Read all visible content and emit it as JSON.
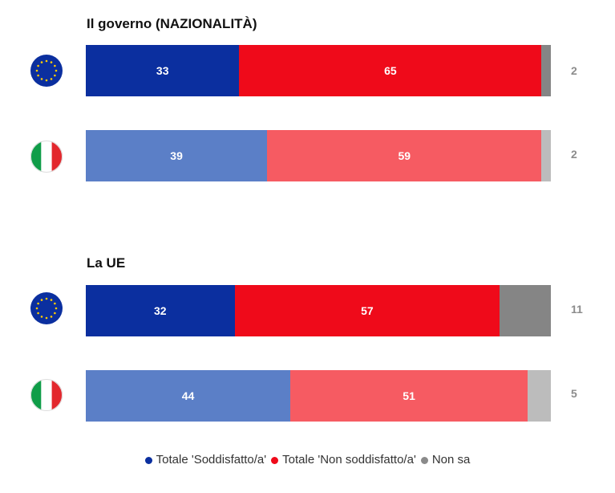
{
  "chart_data": [
    {
      "type": "bar",
      "orientation": "horizontal",
      "stacked": "100%",
      "title": "Il governo (NAZIONALITÀ)",
      "categories": [
        "EU",
        "IT"
      ],
      "series": [
        {
          "name": "Totale 'Soddisfatto/a'",
          "values": [
            33,
            39
          ]
        },
        {
          "name": "Totale 'Non soddisfatto/a'",
          "values": [
            65,
            59
          ]
        },
        {
          "name": "Non sa",
          "values": [
            2,
            2
          ]
        }
      ]
    },
    {
      "type": "bar",
      "orientation": "horizontal",
      "stacked": "100%",
      "title": "La UE",
      "categories": [
        "EU",
        "IT"
      ],
      "series": [
        {
          "name": "Totale 'Soddisfatto/a'",
          "values": [
            32,
            44
          ]
        },
        {
          "name": "Totale 'Non soddisfatto/a'",
          "values": [
            57,
            51
          ]
        },
        {
          "name": "Non sa",
          "values": [
            11,
            5
          ]
        }
      ]
    }
  ],
  "legend": {
    "position": "bottom",
    "items": [
      {
        "label": "Totale 'Soddisfatto/a'",
        "color": "#0b2f9f"
      },
      {
        "label": "Totale 'Non soddisfatto/a'",
        "color": "#ef0a1a"
      },
      {
        "label": "Non sa",
        "color": "#8a8a8a"
      }
    ]
  },
  "colors": {
    "eu": [
      "#0b2f9f",
      "#ef0a1a",
      "#858585"
    ],
    "it": [
      "#5b7fc7",
      "#f65b62",
      "#bcbcbc"
    ]
  },
  "icons": {
    "eu_row": "eu-flag-icon",
    "it_row": "italy-flag-icon"
  }
}
